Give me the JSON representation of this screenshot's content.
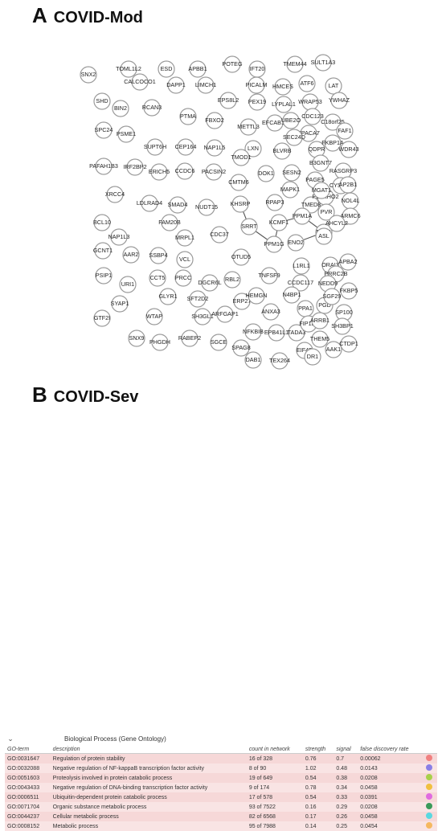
{
  "panels": [
    {
      "letter": "A",
      "title": "COVID-Mod",
      "nodes": [
        [
          "SNX2",
          25,
          63
        ],
        [
          "TOML1L2",
          75,
          56
        ],
        [
          "ESD",
          122,
          56
        ],
        [
          "APBB1",
          161,
          56
        ],
        [
          "POTEG",
          204,
          50
        ],
        [
          "IFT20",
          235,
          56
        ],
        [
          "TMEM44",
          282,
          50
        ],
        [
          "SULT1A3",
          317,
          48
        ],
        [
          "CALCOCO1",
          89,
          72
        ],
        [
          "DAPP1",
          134,
          76
        ],
        [
          "LIMCH1",
          171,
          76
        ],
        [
          "PICALM",
          234,
          76
        ],
        [
          "HMCES",
          267,
          78
        ],
        [
          "ATF6",
          297,
          74
        ],
        [
          "LAT",
          330,
          77
        ],
        [
          "SHD",
          42,
          96
        ],
        [
          "BIN2",
          65,
          105
        ],
        [
          "RCAN3",
          104,
          104
        ],
        [
          "EPS8L2",
          199,
          95
        ],
        [
          "PEX19",
          235,
          97
        ],
        [
          "LYPLAL1",
          268,
          100
        ],
        [
          "WRAP53",
          301,
          97
        ],
        [
          "YWHAZ",
          337,
          95
        ],
        [
          "PTMA",
          149,
          115
        ],
        [
          "FBXO2",
          182,
          120
        ],
        [
          "METTL3",
          224,
          128
        ],
        [
          "EFCAB13",
          257,
          123
        ],
        [
          "UBE2O",
          277,
          120
        ],
        [
          "CDC123",
          304,
          115
        ],
        [
          "C18orf25",
          329,
          122
        ],
        [
          "SPC24",
          44,
          132
        ],
        [
          "PSME1",
          72,
          137
        ],
        [
          "SPACA7",
          299,
          136
        ],
        [
          "FAF1",
          344,
          133
        ],
        [
          "SUPT6H",
          108,
          153
        ],
        [
          "CEP164",
          146,
          153
        ],
        [
          "NAP1L5",
          182,
          154
        ],
        [
          "LXN",
          230,
          155
        ],
        [
          "BLVRB",
          266,
          158
        ],
        [
          "SEC24D",
          281,
          141
        ],
        [
          "QDPR",
          309,
          156
        ],
        [
          "FKBP1A",
          329,
          148
        ],
        [
          "WDR43",
          349,
          156
        ],
        [
          "PAFAH1B3",
          44,
          177
        ],
        [
          "IRF2BP2",
          83,
          178
        ],
        [
          "ERICH5",
          113,
          184
        ],
        [
          "CCDC6",
          145,
          183
        ],
        [
          "PACSIN2",
          181,
          184
        ],
        [
          "TMOD1",
          215,
          166
        ],
        [
          "DOK1",
          246,
          186
        ],
        [
          "SESN2",
          278,
          185
        ],
        [
          "B3GNT7",
          314,
          173
        ],
        [
          "RASGRP3",
          342,
          183
        ],
        [
          "PAGE5",
          307,
          194
        ],
        [
          "CYSRT1",
          339,
          201
        ],
        [
          "AP2B1",
          348,
          200
        ],
        [
          "CMTM6",
          212,
          197
        ],
        [
          "XRCC4",
          58,
          212
        ],
        [
          "LDLRAD4",
          101,
          223
        ],
        [
          "SMAD4",
          136,
          225
        ],
        [
          "NUDT15",
          172,
          228
        ],
        [
          "KHSRP",
          214,
          224
        ],
        [
          "RPAP3",
          257,
          222
        ],
        [
          "MAPK1",
          276,
          206
        ],
        [
          "TMED8",
          302,
          225
        ],
        [
          "PLEKHO2",
          320,
          215
        ],
        [
          "MGAT1",
          315,
          207
        ],
        [
          "NOL4L",
          351,
          220
        ],
        [
          "BCL10",
          42,
          247
        ],
        [
          "FAM20B",
          126,
          247
        ],
        [
          "SRRT",
          225,
          252
        ],
        [
          "KCMF1",
          262,
          247
        ],
        [
          "PPM1A",
          291,
          239
        ],
        [
          "PGK1",
          318,
          259
        ],
        [
          "PVR",
          321,
          234
        ],
        [
          "ARMC6",
          351,
          239
        ],
        [
          "NAP1L3",
          63,
          265
        ],
        [
          "MRPL1",
          145,
          266
        ],
        [
          "CDC37",
          188,
          262
        ],
        [
          "PPM1G",
          256,
          274
        ],
        [
          "ENO2",
          283,
          272
        ],
        [
          "ASL",
          318,
          264
        ],
        [
          "AHCYL2",
          334,
          248
        ],
        [
          "GCNT1",
          43,
          282
        ],
        [
          "AAR2",
          78,
          287
        ],
        [
          "SSBP4",
          112,
          288
        ],
        [
          "OTUD5",
          215,
          290
        ],
        [
          "L1RL1",
          290,
          301
        ],
        [
          "ORAI3",
          326,
          300
        ],
        [
          "APBA2",
          348,
          296
        ],
        [
          "VCL",
          145,
          293
        ],
        [
          "PRRC2B",
          333,
          311
        ],
        [
          "PSIP1",
          44,
          313
        ],
        [
          "URI1",
          74,
          324
        ],
        [
          "CCT5",
          111,
          316
        ],
        [
          "PRCC",
          143,
          316
        ],
        [
          "DGCR6L",
          176,
          322
        ],
        [
          "RBL2",
          204,
          318
        ],
        [
          "TNFSF9",
          250,
          313
        ],
        [
          "CCDC117",
          289,
          322
        ],
        [
          "NEDD9",
          323,
          323
        ],
        [
          "FKBP5",
          349,
          332
        ],
        [
          "SYAP1",
          64,
          348
        ],
        [
          "SFT2D2",
          161,
          342
        ],
        [
          "GLYR1",
          124,
          339
        ],
        [
          "ERP27",
          216,
          345
        ],
        [
          "HEMGN",
          234,
          338
        ],
        [
          "N4BP1",
          278,
          337
        ],
        [
          "PPA1",
          295,
          354
        ],
        [
          "PGD",
          319,
          350
        ],
        [
          "SGF29",
          328,
          339
        ],
        [
          "SP100",
          343,
          359
        ],
        [
          "GTF2I",
          42,
          366
        ],
        [
          "WTAP",
          107,
          364
        ],
        [
          "ANXA3",
          252,
          358
        ],
        [
          "ARFGAP1",
          195,
          361
        ],
        [
          "SH3GL1",
          167,
          364
        ],
        [
          "NFKBIB",
          230,
          383
        ],
        [
          "EPB41L1",
          259,
          384
        ],
        [
          "TADA3",
          284,
          384
        ],
        [
          "FIP1L1",
          299,
          373
        ],
        [
          "ARRB1",
          313,
          369
        ],
        [
          "SH3BP1",
          341,
          376
        ],
        [
          "THEM5",
          313,
          392
        ],
        [
          "AAK1",
          330,
          405
        ],
        [
          "CTDP1",
          349,
          398
        ],
        [
          "SNX9",
          85,
          391
        ],
        [
          "PHGDH",
          114,
          396
        ],
        [
          "RABEP2",
          151,
          391
        ],
        [
          "SGCE",
          187,
          396
        ],
        [
          "SPAG8",
          215,
          403
        ],
        [
          "DAB1",
          230,
          418
        ],
        [
          "TEX264",
          263,
          419
        ],
        [
          "EIF4B",
          294,
          406
        ],
        [
          "DR1",
          304,
          414
        ]
      ],
      "edges": [
        [
          "SRRT",
          "KHSRP"
        ],
        [
          "SRRT",
          "PPM1G"
        ],
        [
          "KCMF1",
          "PPM1A"
        ],
        [
          "KCMF1",
          "PPM1G"
        ],
        [
          "PPM1A",
          "PGK1"
        ],
        [
          "PGK1",
          "ENO2"
        ]
      ]
    },
    {
      "letter": "B",
      "title": "COVID-Sev"
    }
  ],
  "go_table": {
    "header_label": "Biological Process (Gene Ontology)",
    "columns": [
      "GO-term",
      "description",
      "count in network",
      "strength",
      "signal",
      "false discovery rate"
    ],
    "rows": [
      {
        "term": "GO:0031647",
        "description": "Regulation of protein stability",
        "count": "16 of 328",
        "strength": "0.76",
        "signal": "0.7",
        "fdr": "0.00062",
        "color": "#f08080"
      },
      {
        "term": "GO:0032088",
        "description": "Negative regulation of NF-kappaB transcription factor activity",
        "count": "8 of 90",
        "strength": "1.02",
        "signal": "0.48",
        "fdr": "0.0143",
        "color": "#8a7fe6"
      },
      {
        "term": "GO:0051603",
        "description": "Proteolysis involved in protein catabolic process",
        "count": "19 of 649",
        "strength": "0.54",
        "signal": "0.38",
        "fdr": "0.0208",
        "color": "#a8d04a"
      },
      {
        "term": "GO:0043433",
        "description": "Negative regulation of DNA-binding transcription factor activity",
        "count": "9 of 174",
        "strength": "0.78",
        "signal": "0.34",
        "fdr": "0.0458",
        "color": "#f0c040"
      },
      {
        "term": "GO:0006511",
        "description": "Ubiquitin-dependent protein catabolic process",
        "count": "17 of 578",
        "strength": "0.54",
        "signal": "0.33",
        "fdr": "0.0391",
        "color": "#e06be0"
      },
      {
        "term": "GO:0071704",
        "description": "Organic substance metabolic process",
        "count": "93 of 7522",
        "strength": "0.16",
        "signal": "0.29",
        "fdr": "0.0208",
        "color": "#3a9a5a"
      },
      {
        "term": "GO:0044237",
        "description": "Cellular metabolic process",
        "count": "82 of 6568",
        "strength": "0.17",
        "signal": "0.26",
        "fdr": "0.0458",
        "color": "#5ad8e0"
      },
      {
        "term": "GO:0008152",
        "description": "Metabolic process",
        "count": "95 of 7988",
        "strength": "0.14",
        "signal": "0.25",
        "fdr": "0.0454",
        "color": "#f5b860"
      }
    ]
  }
}
